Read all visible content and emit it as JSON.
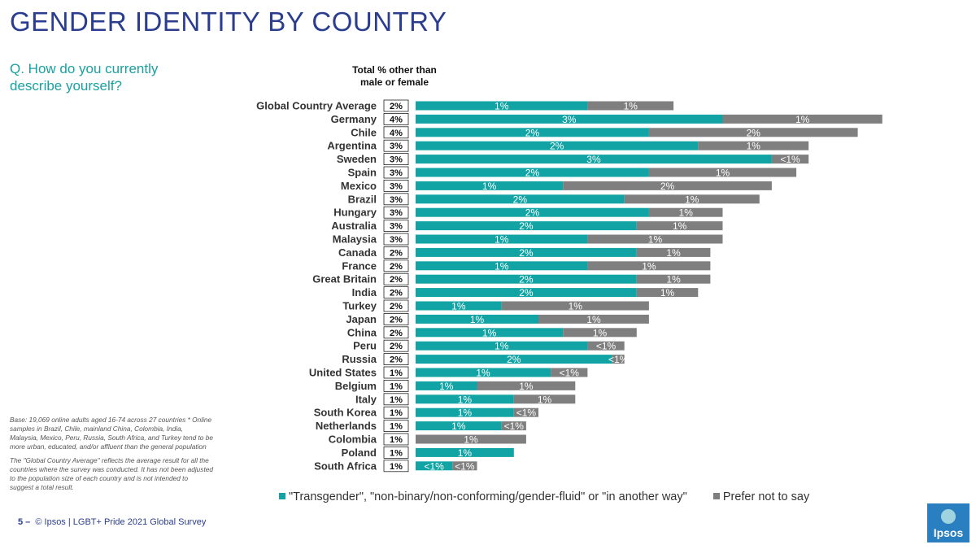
{
  "page": {
    "title": "GENDER IDENTITY BY COUNTRY",
    "question": "Q. How do you currently describe yourself?",
    "total_header": "Total % other than male or female",
    "notes": [
      "Base: 19,069 online adults aged 16-74 across 27 countries * Online samples in Brazil, Chile, mainland China, Colombia, India, Malaysia, Mexico, Peru, Russia, South Africa, and Turkey tend to be more urban, educated, and/or affluent than the general population",
      "The \"Global  Country Average\" reflects the average result for all the countries where the survey was conducted. It has not been adjusted to the population size of each country and is not intended to suggest a total result."
    ],
    "footer_page": "5 –",
    "footer_text": "© Ipsos | LGBT+ Pride 2021 Global Survey",
    "logo_text": "Ipsos"
  },
  "colors": {
    "teal": "#12a4a4",
    "gray": "#7f7f7f",
    "title": "#2a3d8f"
  },
  "chart_data": {
    "type": "bar",
    "orientation": "horizontal",
    "stacked": true,
    "title": "GENDER IDENTITY BY COUNTRY",
    "legend": [
      "\"Transgender\", \"non-binary/non-conforming/gender-fluid\" or \"in another way\"",
      "Prefer not to say"
    ],
    "legend_position": "bottom",
    "categories": [
      "Global Country Average",
      "Germany",
      "Chile",
      "Argentina",
      "Sweden",
      "Spain",
      "Mexico",
      "Brazil",
      "Hungary",
      "Australia",
      "Malaysia",
      "Canada",
      "France",
      "Great Britain",
      "India",
      "Turkey",
      "Japan",
      "China",
      "Peru",
      "Russia",
      "United States",
      "Belgium",
      "Italy",
      "South Korea",
      "Netherlands",
      "Colombia",
      "Poland",
      "South Africa"
    ],
    "totals": [
      "2%",
      "4%",
      "4%",
      "3%",
      "3%",
      "3%",
      "3%",
      "3%",
      "3%",
      "3%",
      "3%",
      "2%",
      "2%",
      "2%",
      "2%",
      "2%",
      "2%",
      "2%",
      "2%",
      "2%",
      "1%",
      "1%",
      "1%",
      "1%",
      "1%",
      "1%",
      "1%",
      "1%"
    ],
    "series": [
      {
        "name": "\"Transgender\", \"non-binary/non-conforming/gender-fluid\" or \"in another way\"",
        "values": [
          1.4,
          2.5,
          1.9,
          2.3,
          2.9,
          1.9,
          1.2,
          1.7,
          1.9,
          1.8,
          1.4,
          1.8,
          1.4,
          1.8,
          1.8,
          0.7,
          1.0,
          1.2,
          1.4,
          1.6,
          1.1,
          0.5,
          0.8,
          0.8,
          0.7,
          0.0,
          0.8,
          0.3
        ],
        "labels": [
          "1%",
          "3%",
          "2%",
          "2%",
          "3%",
          "2%",
          "1%",
          "2%",
          "2%",
          "2%",
          "1%",
          "2%",
          "1%",
          "2%",
          "2%",
          "1%",
          "1%",
          "1%",
          "1%",
          "2%",
          "1%",
          "1%",
          "1%",
          "1%",
          "1%",
          "",
          "1%",
          "<1%"
        ]
      },
      {
        "name": "Prefer not to say",
        "values": [
          0.7,
          1.3,
          1.7,
          0.9,
          0.3,
          1.2,
          1.7,
          1.1,
          0.6,
          0.7,
          1.1,
          0.6,
          1.0,
          0.6,
          0.5,
          1.2,
          0.9,
          0.6,
          0.3,
          0.1,
          0.3,
          0.8,
          0.5,
          0.2,
          0.2,
          0.9,
          0.0,
          0.2
        ],
        "labels": [
          "1%",
          "1%",
          "2%",
          "1%",
          "<1%",
          "1%",
          "2%",
          "1%",
          "1%",
          "1%",
          "1%",
          "1%",
          "1%",
          "1%",
          "1%",
          "1%",
          "1%",
          "1%",
          "<1%",
          "<1%",
          "<1%",
          "1%",
          "1%",
          "<1%",
          "<1%",
          "1%",
          "",
          "<1%"
        ]
      }
    ],
    "xlim": [
      0,
      3.8
    ],
    "grid": false
  }
}
